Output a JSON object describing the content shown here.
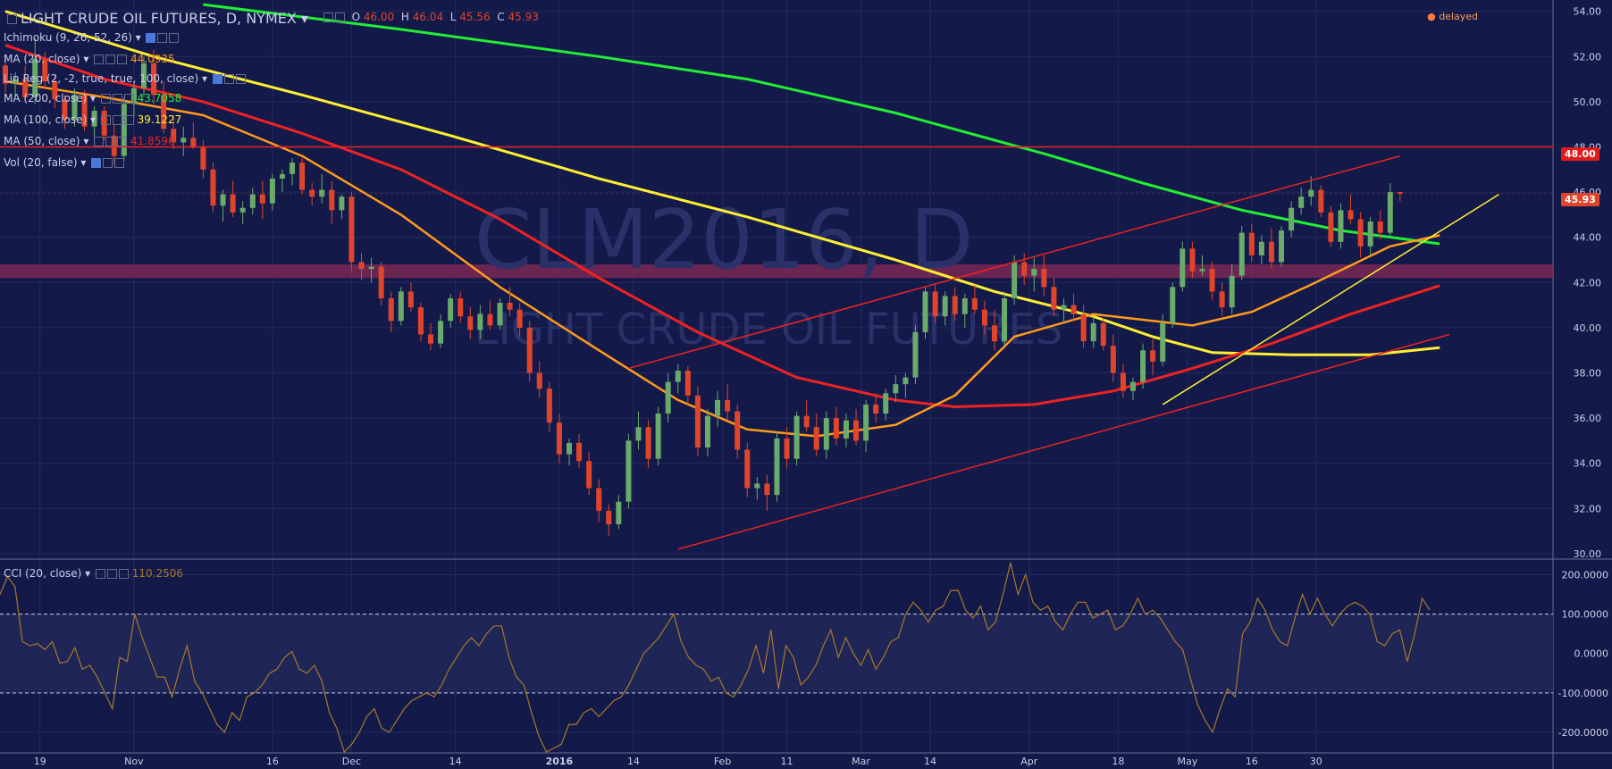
{
  "header": {
    "symbol": "LIGHT CRUDE OIL FUTURES, D, NYMEX",
    "open_label": "O",
    "open": "46.00",
    "high_label": "H",
    "high": "46.04",
    "low_label": "L",
    "low": "45.56",
    "close_label": "C",
    "close": "45.93",
    "delayed": "delayed"
  },
  "indicators": [
    {
      "label": "Ichimoku (9, 26, 52, 26)",
      "value": ""
    },
    {
      "label": "MA (20, close)",
      "value": "44.0935",
      "color": "#ff9a1a"
    },
    {
      "label": "Lin Reg (2, -2, true, true, 100, close)",
      "value": ""
    },
    {
      "label": "MA (200, close)",
      "value": "43.7058",
      "color": "#22ee33"
    },
    {
      "label": "MA (100, close)",
      "value": "39.1227",
      "color": "#ffee33"
    },
    {
      "label": "MA (50, close)",
      "value": "41.8596",
      "color": "#ee2222"
    },
    {
      "label": "Vol (20, false)",
      "value": ""
    }
  ],
  "cci_panel": {
    "label": "CCI (20, close)",
    "value": "110.2506"
  },
  "watermark": {
    "symbol": "CLM2016, D",
    "name": "LIGHT CRUDE OIL FUTURES"
  },
  "price_labels": {
    "hline": "48.00",
    "last": "45.93"
  },
  "colors": {
    "background": "#131a4a",
    "up": "#6aaa6a",
    "down": "#e0452b",
    "ma20": "#ff9a1a",
    "ma50": "#ee2222",
    "ma100": "#ffee33",
    "ma200": "#22ee33",
    "channel": "#ee2222",
    "cci": "#a8782a"
  },
  "chart_data": {
    "type": "candlestick",
    "price_axis": {
      "ticks": [
        "54.00",
        "52.00",
        "50.00",
        "48.00",
        "46.00",
        "44.00",
        "42.00",
        "40.00",
        "38.00",
        "36.00",
        "34.00",
        "32.00",
        "30.00"
      ],
      "ylim": [
        29.8,
        54.5
      ]
    },
    "cci_axis": {
      "ticks": [
        "200.0000",
        "100.0000",
        "0.0000",
        "-100.0000",
        "-200.0000"
      ],
      "ylim": [
        -250,
        235
      ],
      "bands": [
        100,
        -100
      ]
    },
    "x_axis": {
      "ticks": [
        "19",
        "Nov",
        "16",
        "Dec",
        "14",
        "2016",
        "14",
        "Feb",
        "11",
        "Mar",
        "14",
        "Apr",
        "18",
        "May",
        "16",
        "30"
      ]
    },
    "horizontal_line": 48.0,
    "last_price": 45.93,
    "candles": [
      [
        51.6,
        52.1,
        50.4,
        50.8
      ],
      [
        50.8,
        51.3,
        50.2,
        51.0
      ],
      [
        51.0,
        51.6,
        50.0,
        50.2
      ],
      [
        50.2,
        52.8,
        49.9,
        51.9
      ],
      [
        51.9,
        52.2,
        50.6,
        50.9
      ],
      [
        50.9,
        51.2,
        49.7,
        50.1
      ],
      [
        50.1,
        50.3,
        48.8,
        49.2
      ],
      [
        49.2,
        50.6,
        48.9,
        50.3
      ],
      [
        50.3,
        50.5,
        48.7,
        48.9
      ],
      [
        48.9,
        49.8,
        48.0,
        49.6
      ],
      [
        49.6,
        49.8,
        48.3,
        48.5
      ],
      [
        48.5,
        49.0,
        47.2,
        47.6
      ],
      [
        47.6,
        50.2,
        47.4,
        49.9
      ],
      [
        49.9,
        50.9,
        49.3,
        50.6
      ],
      [
        50.6,
        52.0,
        50.2,
        51.7
      ],
      [
        51.7,
        52.3,
        49.9,
        50.3
      ],
      [
        50.3,
        50.9,
        48.6,
        48.8
      ],
      [
        48.8,
        49.4,
        47.9,
        48.2
      ],
      [
        48.2,
        48.9,
        47.6,
        48.4
      ],
      [
        48.4,
        49.1,
        47.9,
        48.0
      ],
      [
        48.0,
        48.3,
        46.6,
        47.0
      ],
      [
        47.0,
        47.3,
        45.1,
        45.4
      ],
      [
        45.4,
        46.1,
        44.7,
        45.9
      ],
      [
        45.9,
        46.5,
        44.9,
        45.1
      ],
      [
        45.1,
        45.6,
        44.6,
        45.3
      ],
      [
        45.3,
        46.2,
        45.0,
        45.9
      ],
      [
        45.9,
        46.5,
        44.8,
        45.5
      ],
      [
        45.5,
        46.8,
        45.2,
        46.6
      ],
      [
        46.6,
        47.0,
        46.0,
        46.8
      ],
      [
        46.8,
        47.5,
        46.3,
        47.3
      ],
      [
        47.3,
        47.5,
        45.9,
        46.1
      ],
      [
        46.1,
        46.4,
        45.4,
        45.8
      ],
      [
        45.8,
        46.8,
        45.5,
        46.1
      ],
      [
        46.1,
        46.5,
        44.6,
        45.2
      ],
      [
        45.2,
        45.9,
        44.8,
        45.8
      ],
      [
        45.8,
        46.0,
        42.5,
        42.9
      ],
      [
        42.9,
        43.3,
        42.1,
        42.6
      ],
      [
        42.6,
        43.1,
        42.0,
        42.7
      ],
      [
        42.7,
        42.9,
        41.0,
        41.3
      ],
      [
        41.3,
        41.6,
        39.8,
        40.3
      ],
      [
        40.3,
        41.8,
        40.1,
        41.6
      ],
      [
        41.6,
        42.0,
        40.7,
        40.9
      ],
      [
        40.9,
        41.1,
        39.4,
        39.7
      ],
      [
        39.7,
        40.2,
        39.0,
        39.3
      ],
      [
        39.3,
        40.6,
        39.1,
        40.3
      ],
      [
        40.3,
        41.5,
        40.0,
        41.3
      ],
      [
        41.3,
        41.6,
        40.2,
        40.5
      ],
      [
        40.5,
        40.9,
        39.5,
        39.9
      ],
      [
        39.9,
        41.0,
        39.5,
        40.6
      ],
      [
        40.6,
        41.2,
        39.9,
        40.1
      ],
      [
        40.1,
        41.3,
        39.9,
        41.1
      ],
      [
        41.1,
        41.8,
        40.5,
        40.8
      ],
      [
        40.8,
        41.1,
        39.6,
        40.0
      ],
      [
        40.0,
        40.3,
        37.6,
        38.0
      ],
      [
        38.0,
        38.5,
        36.9,
        37.3
      ],
      [
        37.3,
        37.6,
        35.4,
        35.8
      ],
      [
        35.8,
        36.2,
        34.0,
        34.4
      ],
      [
        34.4,
        35.1,
        33.9,
        34.9
      ],
      [
        34.9,
        35.3,
        33.8,
        34.1
      ],
      [
        34.1,
        34.5,
        32.6,
        32.9
      ],
      [
        32.9,
        33.3,
        31.4,
        31.9
      ],
      [
        31.9,
        32.2,
        30.8,
        31.3
      ],
      [
        31.3,
        32.6,
        31.1,
        32.3
      ],
      [
        32.3,
        35.3,
        32.0,
        35.0
      ],
      [
        35.0,
        36.3,
        34.6,
        35.6
      ],
      [
        35.6,
        35.9,
        33.8,
        34.2
      ],
      [
        34.2,
        36.5,
        33.9,
        36.2
      ],
      [
        36.2,
        38.0,
        35.8,
        37.6
      ],
      [
        37.6,
        38.4,
        37.1,
        38.1
      ],
      [
        38.1,
        38.3,
        36.6,
        37.0
      ],
      [
        37.0,
        37.4,
        34.3,
        34.7
      ],
      [
        34.7,
        36.4,
        34.3,
        36.1
      ],
      [
        36.1,
        37.2,
        35.6,
        36.8
      ],
      [
        36.8,
        37.5,
        35.9,
        36.3
      ],
      [
        36.3,
        36.6,
        34.2,
        34.6
      ],
      [
        34.6,
        34.9,
        32.5,
        32.9
      ],
      [
        32.9,
        33.4,
        32.4,
        33.1
      ],
      [
        33.1,
        33.5,
        31.9,
        32.6
      ],
      [
        32.6,
        35.4,
        32.3,
        35.1
      ],
      [
        35.1,
        35.6,
        33.8,
        34.2
      ],
      [
        34.2,
        36.3,
        33.9,
        36.1
      ],
      [
        36.1,
        36.8,
        35.4,
        35.6
      ],
      [
        35.6,
        36.2,
        34.3,
        34.6
      ],
      [
        34.6,
        36.3,
        34.2,
        36.0
      ],
      [
        36.0,
        36.5,
        34.8,
        35.1
      ],
      [
        35.1,
        36.2,
        34.7,
        35.9
      ],
      [
        35.9,
        36.4,
        34.8,
        35.0
      ],
      [
        35.0,
        36.8,
        34.5,
        36.6
      ],
      [
        36.6,
        37.1,
        35.8,
        36.2
      ],
      [
        36.2,
        37.3,
        35.9,
        37.1
      ],
      [
        37.1,
        37.9,
        36.7,
        37.5
      ],
      [
        37.5,
        38.0,
        36.9,
        37.8
      ],
      [
        37.8,
        40.1,
        37.5,
        39.8
      ],
      [
        39.8,
        41.8,
        39.5,
        41.6
      ],
      [
        41.6,
        41.9,
        40.2,
        40.5
      ],
      [
        40.5,
        41.6,
        40.1,
        41.4
      ],
      [
        41.4,
        41.8,
        40.3,
        40.6
      ],
      [
        40.6,
        41.5,
        40.0,
        41.3
      ],
      [
        41.3,
        41.9,
        40.6,
        40.8
      ],
      [
        40.8,
        41.2,
        39.7,
        40.1
      ],
      [
        40.1,
        40.8,
        39.0,
        39.4
      ],
      [
        39.4,
        41.6,
        39.2,
        41.3
      ],
      [
        41.3,
        43.2,
        41.0,
        42.9
      ],
      [
        42.9,
        43.3,
        41.9,
        42.3
      ],
      [
        42.3,
        43.1,
        41.6,
        42.6
      ],
      [
        42.6,
        43.2,
        41.4,
        41.8
      ],
      [
        41.8,
        42.2,
        40.5,
        40.8
      ],
      [
        40.8,
        41.3,
        40.2,
        41.0
      ],
      [
        41.0,
        41.5,
        40.3,
        40.6
      ],
      [
        40.6,
        41.0,
        39.1,
        39.4
      ],
      [
        39.4,
        40.5,
        39.1,
        40.2
      ],
      [
        40.2,
        40.4,
        39.0,
        39.2
      ],
      [
        39.2,
        39.7,
        37.6,
        38.0
      ],
      [
        38.0,
        38.4,
        36.9,
        37.2
      ],
      [
        37.2,
        37.8,
        36.8,
        37.6
      ],
      [
        37.6,
        39.3,
        37.3,
        39.0
      ],
      [
        39.0,
        39.5,
        37.9,
        38.5
      ],
      [
        38.5,
        40.6,
        38.3,
        40.2
      ],
      [
        40.2,
        42.0,
        40.0,
        41.8
      ],
      [
        41.8,
        43.8,
        41.6,
        43.5
      ],
      [
        43.5,
        43.8,
        42.2,
        42.5
      ],
      [
        42.5,
        43.2,
        42.3,
        42.6
      ],
      [
        42.6,
        42.9,
        41.2,
        41.6
      ],
      [
        41.6,
        42.0,
        40.5,
        40.9
      ],
      [
        40.9,
        42.8,
        40.6,
        42.3
      ],
      [
        42.3,
        44.5,
        42.1,
        44.2
      ],
      [
        44.2,
        44.6,
        42.9,
        43.2
      ],
      [
        43.2,
        44.1,
        42.8,
        43.8
      ],
      [
        43.8,
        44.4,
        42.6,
        42.9
      ],
      [
        42.9,
        44.5,
        42.7,
        44.3
      ],
      [
        44.3,
        45.6,
        44.0,
        45.3
      ],
      [
        45.3,
        46.2,
        45.0,
        45.8
      ],
      [
        45.8,
        46.7,
        45.4,
        46.1
      ],
      [
        46.1,
        46.3,
        44.9,
        45.1
      ],
      [
        45.1,
        45.4,
        43.6,
        43.8
      ],
      [
        43.8,
        45.5,
        43.5,
        45.2
      ],
      [
        45.2,
        45.9,
        44.6,
        44.8
      ],
      [
        44.8,
        45.1,
        43.1,
        43.6
      ],
      [
        43.6,
        44.9,
        43.2,
        44.7
      ],
      [
        44.7,
        45.2,
        43.9,
        44.2
      ],
      [
        44.2,
        46.4,
        44.0,
        46.0
      ],
      [
        46.0,
        46.0,
        45.6,
        45.93
      ]
    ],
    "cci": [
      150,
      195,
      170,
      30,
      20,
      25,
      10,
      30,
      -25,
      -20,
      15,
      -40,
      -30,
      -60,
      -100,
      -140,
      -10,
      -20,
      100,
      40,
      -10,
      -60,
      -60,
      -110,
      -40,
      20,
      -70,
      -100,
      -140,
      -180,
      -200,
      -150,
      -170,
      -110,
      -100,
      -80,
      -50,
      -40,
      -10,
      5,
      -40,
      -50,
      -30,
      -70,
      -150,
      -190,
      -250,
      -230,
      -200,
      -160,
      -140,
      -190,
      -200,
      -170,
      -140,
      -120,
      -110,
      -100,
      -110,
      -80,
      -40,
      -10,
      20,
      40,
      20,
      50,
      70,
      70,
      -10,
      -60,
      -80,
      -150,
      -210,
      -250,
      -240,
      -230,
      -180,
      -180,
      -150,
      -140,
      -160,
      -140,
      -120,
      -110,
      -80,
      -40,
      0,
      20,
      40,
      70,
      100,
      30,
      -10,
      -30,
      -40,
      -70,
      -60,
      -100,
      -110,
      -80,
      -40,
      20,
      -50,
      60,
      -90,
      20,
      -10,
      -80,
      -60,
      -30,
      20,
      60,
      -10,
      40,
      0,
      -30,
      10,
      -40,
      -10,
      30,
      40,
      100,
      130,
      110,
      80,
      110,
      120,
      160,
      160,
      110,
      90,
      120,
      60,
      80,
      150,
      230,
      150,
      200,
      130,
      110,
      120,
      80,
      60,
      100,
      130,
      130,
      90,
      100,
      110,
      60,
      70,
      100,
      140,
      100,
      110,
      90,
      60,
      30,
      10,
      -60,
      -130,
      -170,
      -200,
      -140,
      -90,
      -110,
      50,
      80,
      140,
      110,
      60,
      30,
      20,
      90,
      150,
      100,
      140,
      100,
      70,
      100,
      120,
      130,
      120,
      100,
      30,
      20,
      50,
      60,
      -20,
      50,
      140,
      110
    ],
    "ma20": [
      [
        0,
        50.9
      ],
      [
        10,
        50.2
      ],
      [
        20,
        49.4
      ],
      [
        30,
        47.6
      ],
      [
        40,
        45.0
      ],
      [
        50,
        41.8
      ],
      [
        60,
        39.0
      ],
      [
        68,
        36.8
      ],
      [
        75,
        35.5
      ],
      [
        82,
        35.2
      ],
      [
        90,
        35.7
      ],
      [
        96,
        37.0
      ],
      [
        102,
        39.6
      ],
      [
        110,
        40.6
      ],
      [
        116,
        40.3
      ],
      [
        120,
        40.1
      ],
      [
        126,
        40.7
      ],
      [
        132,
        41.9
      ],
      [
        140,
        43.6
      ],
      [
        145,
        44.09
      ]
    ],
    "ma50": [
      [
        0,
        52.5
      ],
      [
        10,
        51.0
      ],
      [
        20,
        50.0
      ],
      [
        30,
        48.6
      ],
      [
        40,
        47.0
      ],
      [
        50,
        44.8
      ],
      [
        60,
        42.2
      ],
      [
        70,
        39.8
      ],
      [
        80,
        37.8
      ],
      [
        90,
        36.8
      ],
      [
        96,
        36.5
      ],
      [
        104,
        36.6
      ],
      [
        112,
        37.2
      ],
      [
        120,
        38.2
      ],
      [
        128,
        39.3
      ],
      [
        136,
        40.6
      ],
      [
        145,
        41.86
      ]
    ],
    "ma100": [
      [
        0,
        54.0
      ],
      [
        15,
        52.0
      ],
      [
        30,
        50.3
      ],
      [
        45,
        48.5
      ],
      [
        60,
        46.6
      ],
      [
        75,
        44.9
      ],
      [
        90,
        43.0
      ],
      [
        100,
        41.6
      ],
      [
        110,
        40.5
      ],
      [
        116,
        39.6
      ],
      [
        122,
        38.9
      ],
      [
        130,
        38.8
      ],
      [
        138,
        38.8
      ],
      [
        145,
        39.12
      ]
    ],
    "ma200": [
      [
        20,
        54.3
      ],
      [
        40,
        53.2
      ],
      [
        60,
        52.0
      ],
      [
        75,
        51.0
      ],
      [
        90,
        49.5
      ],
      [
        105,
        47.7
      ],
      [
        115,
        46.4
      ],
      [
        125,
        45.2
      ],
      [
        135,
        44.3
      ],
      [
        145,
        43.71
      ]
    ],
    "channel": {
      "upper": [
        [
          63,
          38.2
        ],
        [
          141,
          47.6
        ]
      ],
      "lower": [
        [
          68,
          30.2
        ],
        [
          146,
          39.7
        ]
      ]
    },
    "trendline": [
      [
        117,
        36.6
      ],
      [
        151,
        45.9
      ]
    ]
  }
}
